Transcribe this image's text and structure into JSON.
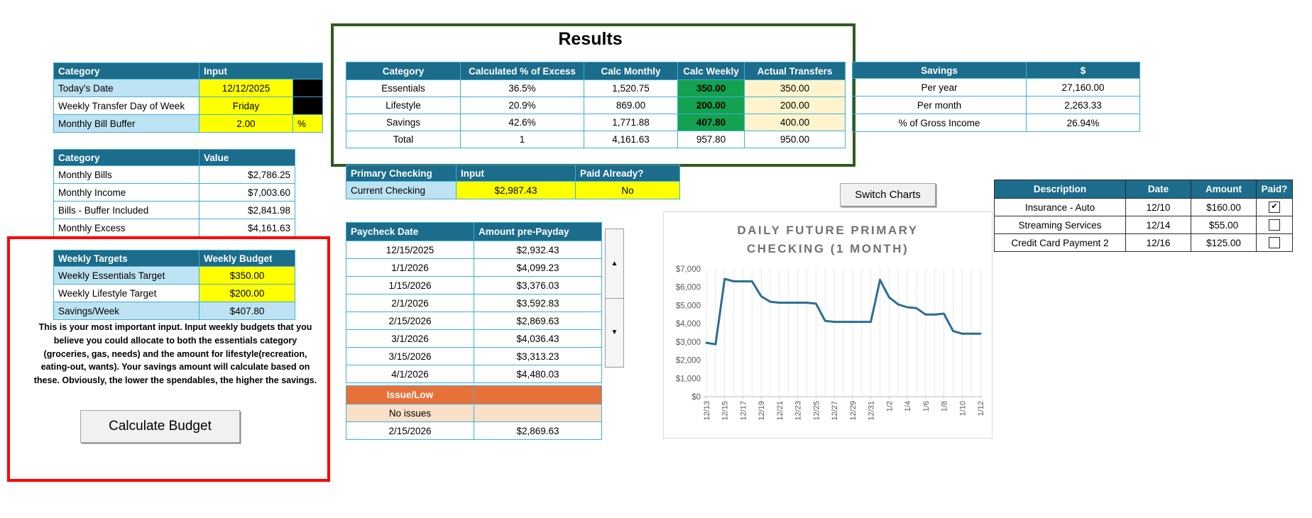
{
  "palette": {
    "header_bg": "#1C6C8C",
    "row_alt_blue": "#BDE3F2",
    "cell_border": "#3FB0D5",
    "input_yellow": "#FFFF00",
    "pale_yellow": "#FFF4CC",
    "calc_weekly_green": "#13A24F",
    "issue_orange": "#E8713A",
    "issue_peach": "#FBDFC9",
    "red_box": "#FE0000",
    "green_box": "#2F5B1E",
    "chart_line": "#2B6E93",
    "chart_title_gray": "#757171"
  },
  "inputs_table": {
    "col_category": "Category",
    "col_input": "Input",
    "rows": [
      {
        "label": "Today's Date",
        "value": "12/12/2025"
      },
      {
        "label": "Weekly Transfer Day of Week",
        "value": "Friday"
      },
      {
        "label": "Monthly Bill Buffer",
        "value": "2.00",
        "unit": "%"
      }
    ]
  },
  "monthly_table": {
    "col_category": "Category",
    "col_value": "Value",
    "rows": [
      {
        "label": "Monthly Bills",
        "value": "$2,786.25"
      },
      {
        "label": "Monthly Income",
        "value": "$7,003.60"
      },
      {
        "label": "Bills - Buffer Included",
        "value": "$2,841.98"
      },
      {
        "label": "Monthly Excess",
        "value": "$4,161.63"
      }
    ]
  },
  "weekly_targets": {
    "col_label": "Weekly Targets",
    "col_budget": "Weekly Budget",
    "rows": [
      {
        "label": "Weekly Essentials Target",
        "value": "$350.00"
      },
      {
        "label": "Weekly Lifestyle Target",
        "value": "$200.00"
      },
      {
        "label": "Savings/Week",
        "value": "$407.80"
      }
    ],
    "note": "This is your most important input. Input weekly budgets that you believe you could allocate to both the essentials category (groceries, gas, needs) and the amount for lifestyle(recreation, eating-out, wants). Your savings amount will calculate based on these. Obviously, the lower the spendables, the higher the savings.",
    "button_label": "Calculate Budget"
  },
  "results": {
    "title": "Results",
    "headers": [
      "Category",
      "Calculated % of Excess",
      "Calc Monthly",
      "Calc Weekly",
      "Actual Transfers"
    ],
    "rows": [
      {
        "category": "Essentials",
        "pct": "36.5%",
        "monthly": "1,520.75",
        "weekly": "350.00",
        "actual": "350.00"
      },
      {
        "category": "Lifestyle",
        "pct": "20.9%",
        "monthly": "869.00",
        "weekly": "200.00",
        "actual": "200.00"
      },
      {
        "category": "Savings",
        "pct": "42.6%",
        "monthly": "1,771.88",
        "weekly": "407.80",
        "actual": "400.00"
      }
    ],
    "total": {
      "category": "Total",
      "pct": "1",
      "monthly": "4,161.63",
      "weekly": "957.80",
      "actual": "950.00"
    }
  },
  "primary_checking": {
    "headers": [
      "Primary Checking",
      "Input",
      "Paid Already?"
    ],
    "row": {
      "label": "Current Checking",
      "input": "$2,987.43",
      "paid": "No"
    }
  },
  "paychecks": {
    "headers": [
      "Paycheck Date",
      "Amount pre-Payday"
    ],
    "rows": [
      {
        "date": "12/15/2025",
        "amount": "$2,932.43"
      },
      {
        "date": "1/1/2026",
        "amount": "$4,099.23"
      },
      {
        "date": "1/15/2026",
        "amount": "$3,376.03"
      },
      {
        "date": "2/1/2026",
        "amount": "$3,592.83"
      },
      {
        "date": "2/15/2026",
        "amount": "$2,869.63"
      },
      {
        "date": "3/1/2026",
        "amount": "$4,036.43"
      },
      {
        "date": "3/15/2026",
        "amount": "$3,313.23"
      },
      {
        "date": "4/1/2026",
        "amount": "$4,480.03"
      }
    ]
  },
  "issues": {
    "header": "Issue/Low",
    "status": "No issues",
    "row": {
      "date": "2/15/2026",
      "amount": "$2,869.63"
    }
  },
  "chart_controls": {
    "switch_button_label": "Switch Charts"
  },
  "chart_data": {
    "type": "line",
    "title": "DAILY FUTURE PRIMARY CHECKING (1 MONTH)",
    "x": [
      "12/13",
      "12/14",
      "12/15",
      "12/16",
      "12/17",
      "12/18",
      "12/19",
      "12/20",
      "12/21",
      "12/22",
      "12/23",
      "12/24",
      "12/25",
      "12/26",
      "12/27",
      "12/28",
      "12/29",
      "12/30",
      "12/31",
      "1/1",
      "1/2",
      "1/3",
      "1/4",
      "1/5",
      "1/6",
      "1/7",
      "1/8",
      "1/9",
      "1/10",
      "1/11",
      "1/12"
    ],
    "values": [
      2950,
      2870,
      6450,
      6320,
      6320,
      6320,
      5500,
      5200,
      5150,
      5150,
      5150,
      5150,
      5100,
      4150,
      4100,
      4100,
      4100,
      4100,
      4100,
      6400,
      5450,
      5050,
      4900,
      4850,
      4500,
      4500,
      4550,
      3600,
      3450,
      3450,
      3450
    ],
    "ylim": [
      0,
      7000
    ],
    "y_tick_interval": 1000,
    "y_tick_labels": [
      "$0",
      "$1,000",
      "$2,000",
      "$3,000",
      "$4,000",
      "$5,000",
      "$6,000",
      "$7,000"
    ],
    "x_label_every": 2,
    "grid": "vertical",
    "legend": "none",
    "line_color": "#2B6E93"
  },
  "savings": {
    "headers": [
      "Savings",
      "$"
    ],
    "rows": [
      {
        "label": "Per year",
        "value": "27,160.00"
      },
      {
        "label": "Per month",
        "value": "2,263.33"
      },
      {
        "label": "% of Gross Income",
        "value": "26.94%"
      }
    ]
  },
  "bills": {
    "headers": [
      "Description",
      "Date",
      "Amount",
      "Paid?"
    ],
    "rows": [
      {
        "description": "Insurance - Auto",
        "date": "12/10",
        "amount": "$160.00",
        "paid": true
      },
      {
        "description": "Streaming Services",
        "date": "12/14",
        "amount": "$55.00",
        "paid": false
      },
      {
        "description": "Credit Card Payment 2",
        "date": "12/16",
        "amount": "$125.00",
        "paid": false
      }
    ]
  }
}
